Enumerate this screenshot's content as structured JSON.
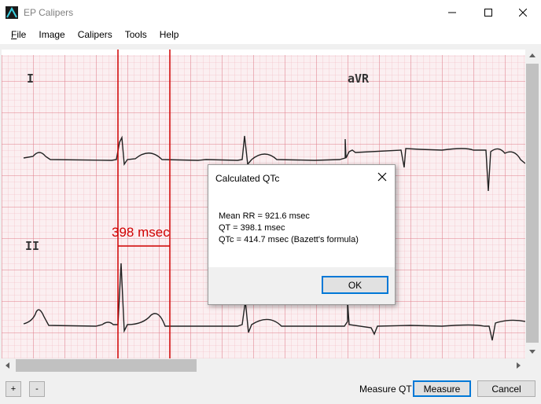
{
  "window": {
    "title": "EP Calipers",
    "icon": "ep-calipers-app-icon",
    "controls": [
      "minimize-icon",
      "maximize-icon",
      "close-icon"
    ]
  },
  "menu": {
    "items": [
      {
        "label": "File",
        "accel": "F"
      },
      {
        "label": "Image"
      },
      {
        "label": "Calipers"
      },
      {
        "label": "Tools"
      },
      {
        "label": "Help"
      }
    ]
  },
  "ecg": {
    "lead_labels": [
      "I",
      "aVR",
      "II"
    ],
    "caliper_measurement": "398 msec",
    "grid_color": "#e8a0a8",
    "caliper_color": "#d00000",
    "trace_color": "#202020"
  },
  "dialog": {
    "title": "Calculated QTc",
    "lines": [
      "Mean RR = 921.6 msec",
      "QT = 398.1 msec",
      "QTc = 414.7 msec (Bazett's formula)"
    ],
    "ok_label": "OK"
  },
  "bottom": {
    "zoom_in_label": "+",
    "zoom_out_label": "-",
    "mode_label": "Measure QT",
    "measure_label": "Measure",
    "cancel_label": "Cancel"
  }
}
